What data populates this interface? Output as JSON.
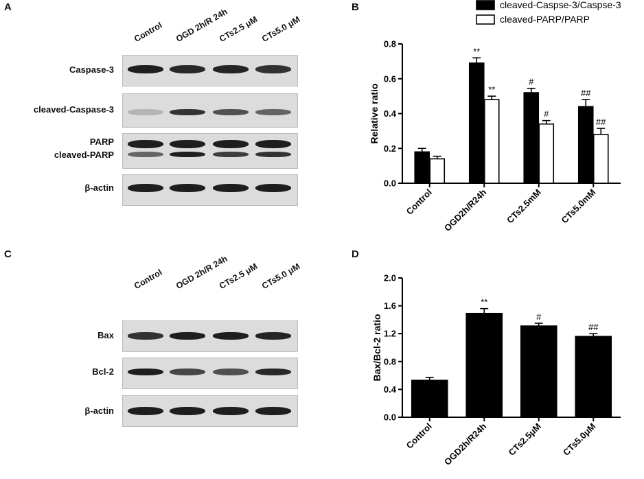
{
  "panel_letters": [
    "A",
    "B",
    "C",
    "D"
  ],
  "blot_a": {
    "lanes": [
      "Control",
      "OGD 2h/R 24h",
      "CTs2.5 μM",
      "CTs5.0 μM"
    ],
    "rows": [
      "Caspase-3",
      "cleaved-Caspase-3",
      "PARP",
      "cleaved-PARP",
      "β-actin"
    ],
    "band_intensity": {
      "Caspase-3": [
        0.95,
        0.9,
        0.92,
        0.85
      ],
      "cleaved-Caspase-3": [
        0.2,
        0.85,
        0.7,
        0.6
      ],
      "PARP": [
        0.95,
        0.95,
        0.95,
        0.95
      ],
      "cleaved-PARP": [
        0.6,
        0.95,
        0.8,
        0.85
      ],
      "β-actin": [
        0.95,
        0.95,
        0.95,
        0.95
      ]
    }
  },
  "blot_c": {
    "lanes": [
      "Control",
      "OGD 2h/R 24h",
      "CTs2.5 μM",
      "CTs5.0 μM"
    ],
    "rows": [
      "Bax",
      "Bcl-2",
      "β-actin"
    ],
    "band_intensity": {
      "Bax": [
        0.85,
        0.95,
        0.95,
        0.92
      ],
      "Bcl-2": [
        0.95,
        0.75,
        0.7,
        0.9
      ],
      "β-actin": [
        0.95,
        0.95,
        0.95,
        0.95
      ]
    }
  },
  "chart_data": [
    {
      "panel": "B",
      "type": "bar",
      "categories": [
        "Control",
        "OGD2h/R24h",
        "CTs2.5mM",
        "CTs5.0mM"
      ],
      "series": [
        {
          "name": "cleaved-Caspse-3/Caspse-3",
          "fill": "#000000",
          "values": [
            0.18,
            0.69,
            0.52,
            0.44
          ],
          "errors": [
            0.02,
            0.03,
            0.025,
            0.04
          ],
          "annotations": [
            "",
            "**",
            "#",
            "##"
          ]
        },
        {
          "name": "cleaved-PARP/PARP",
          "fill": "#ffffff",
          "values": [
            0.14,
            0.48,
            0.34,
            0.28
          ],
          "errors": [
            0.015,
            0.02,
            0.02,
            0.035
          ],
          "annotations": [
            "",
            "**",
            "#",
            "##"
          ]
        }
      ],
      "ylabel": "Relative ratio",
      "xlabel": "",
      "ylim": [
        0,
        0.8
      ],
      "yticks": [
        "0.0",
        "0.2",
        "0.4",
        "0.6",
        "0.8"
      ],
      "legend": "top-right",
      "grid": false
    },
    {
      "panel": "D",
      "type": "bar",
      "categories": [
        "Control",
        "OGD2h/R24h",
        "CTs2.5μM",
        "CTs5.0μM"
      ],
      "series": [
        {
          "fill": "#000000",
          "values": [
            0.53,
            1.49,
            1.31,
            1.16
          ],
          "errors": [
            0.04,
            0.07,
            0.04,
            0.04
          ],
          "annotations": [
            "",
            "**",
            "#",
            "##"
          ]
        }
      ],
      "ylabel": "Bax/Bcl-2 ratio",
      "xlabel": "",
      "ylim": [
        0,
        2.0
      ],
      "yticks": [
        "0.0",
        "0.4",
        "0.8",
        "1.2",
        "1.6",
        "2.0"
      ],
      "grid": false
    }
  ]
}
